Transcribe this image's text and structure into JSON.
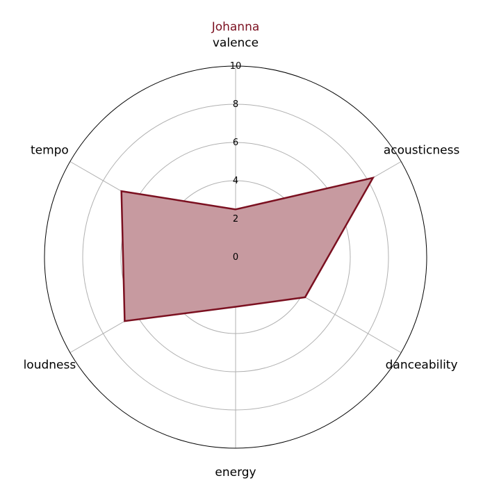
{
  "chart_data": {
    "type": "radar",
    "title": "Johanna",
    "title_color": "#7b1020",
    "axes": [
      "valence",
      "acousticness",
      "danceability",
      "energy",
      "loudness",
      "tempo"
    ],
    "series": [
      {
        "name": "Johanna",
        "values": [
          2.5,
          8.3,
          4.2,
          2.6,
          6.7,
          6.9
        ],
        "line_color": "#7b1020",
        "fill_color": "#c79aa0"
      }
    ],
    "rlim": [
      0,
      10
    ],
    "rticks": [
      0,
      2,
      4,
      6,
      8,
      10
    ],
    "rtick_labels": [
      "0",
      "2",
      "4",
      "6",
      "8",
      "10"
    ],
    "grid": true
  }
}
